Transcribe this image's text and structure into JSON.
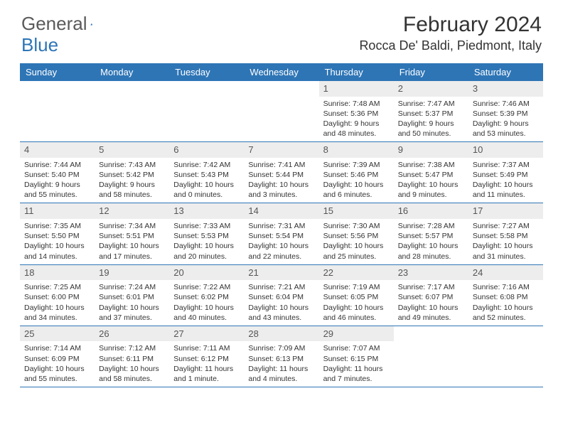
{
  "brand": {
    "part1": "General",
    "part2": "Blue"
  },
  "title": "February 2024",
  "location": "Rocca De' Baldi, Piedmont, Italy",
  "colors": {
    "header_bg": "#2e75b6",
    "header_text": "#ffffff",
    "daynum_bg": "#ededed",
    "rule": "#2e75b6",
    "body_text": "#333333",
    "logo_gray": "#5a5a5a",
    "logo_blue": "#2e75b6",
    "page_bg": "#ffffff"
  },
  "dow": [
    "Sunday",
    "Monday",
    "Tuesday",
    "Wednesday",
    "Thursday",
    "Friday",
    "Saturday"
  ],
  "weeks": [
    [
      {
        "n": "",
        "sr": "",
        "ss": "",
        "dl": ""
      },
      {
        "n": "",
        "sr": "",
        "ss": "",
        "dl": ""
      },
      {
        "n": "",
        "sr": "",
        "ss": "",
        "dl": ""
      },
      {
        "n": "",
        "sr": "",
        "ss": "",
        "dl": ""
      },
      {
        "n": "1",
        "sr": "Sunrise: 7:48 AM",
        "ss": "Sunset: 5:36 PM",
        "dl": "Daylight: 9 hours and 48 minutes."
      },
      {
        "n": "2",
        "sr": "Sunrise: 7:47 AM",
        "ss": "Sunset: 5:37 PM",
        "dl": "Daylight: 9 hours and 50 minutes."
      },
      {
        "n": "3",
        "sr": "Sunrise: 7:46 AM",
        "ss": "Sunset: 5:39 PM",
        "dl": "Daylight: 9 hours and 53 minutes."
      }
    ],
    [
      {
        "n": "4",
        "sr": "Sunrise: 7:44 AM",
        "ss": "Sunset: 5:40 PM",
        "dl": "Daylight: 9 hours and 55 minutes."
      },
      {
        "n": "5",
        "sr": "Sunrise: 7:43 AM",
        "ss": "Sunset: 5:42 PM",
        "dl": "Daylight: 9 hours and 58 minutes."
      },
      {
        "n": "6",
        "sr": "Sunrise: 7:42 AM",
        "ss": "Sunset: 5:43 PM",
        "dl": "Daylight: 10 hours and 0 minutes."
      },
      {
        "n": "7",
        "sr": "Sunrise: 7:41 AM",
        "ss": "Sunset: 5:44 PM",
        "dl": "Daylight: 10 hours and 3 minutes."
      },
      {
        "n": "8",
        "sr": "Sunrise: 7:39 AM",
        "ss": "Sunset: 5:46 PM",
        "dl": "Daylight: 10 hours and 6 minutes."
      },
      {
        "n": "9",
        "sr": "Sunrise: 7:38 AM",
        "ss": "Sunset: 5:47 PM",
        "dl": "Daylight: 10 hours and 9 minutes."
      },
      {
        "n": "10",
        "sr": "Sunrise: 7:37 AM",
        "ss": "Sunset: 5:49 PM",
        "dl": "Daylight: 10 hours and 11 minutes."
      }
    ],
    [
      {
        "n": "11",
        "sr": "Sunrise: 7:35 AM",
        "ss": "Sunset: 5:50 PM",
        "dl": "Daylight: 10 hours and 14 minutes."
      },
      {
        "n": "12",
        "sr": "Sunrise: 7:34 AM",
        "ss": "Sunset: 5:51 PM",
        "dl": "Daylight: 10 hours and 17 minutes."
      },
      {
        "n": "13",
        "sr": "Sunrise: 7:33 AM",
        "ss": "Sunset: 5:53 PM",
        "dl": "Daylight: 10 hours and 20 minutes."
      },
      {
        "n": "14",
        "sr": "Sunrise: 7:31 AM",
        "ss": "Sunset: 5:54 PM",
        "dl": "Daylight: 10 hours and 22 minutes."
      },
      {
        "n": "15",
        "sr": "Sunrise: 7:30 AM",
        "ss": "Sunset: 5:56 PM",
        "dl": "Daylight: 10 hours and 25 minutes."
      },
      {
        "n": "16",
        "sr": "Sunrise: 7:28 AM",
        "ss": "Sunset: 5:57 PM",
        "dl": "Daylight: 10 hours and 28 minutes."
      },
      {
        "n": "17",
        "sr": "Sunrise: 7:27 AM",
        "ss": "Sunset: 5:58 PM",
        "dl": "Daylight: 10 hours and 31 minutes."
      }
    ],
    [
      {
        "n": "18",
        "sr": "Sunrise: 7:25 AM",
        "ss": "Sunset: 6:00 PM",
        "dl": "Daylight: 10 hours and 34 minutes."
      },
      {
        "n": "19",
        "sr": "Sunrise: 7:24 AM",
        "ss": "Sunset: 6:01 PM",
        "dl": "Daylight: 10 hours and 37 minutes."
      },
      {
        "n": "20",
        "sr": "Sunrise: 7:22 AM",
        "ss": "Sunset: 6:02 PM",
        "dl": "Daylight: 10 hours and 40 minutes."
      },
      {
        "n": "21",
        "sr": "Sunrise: 7:21 AM",
        "ss": "Sunset: 6:04 PM",
        "dl": "Daylight: 10 hours and 43 minutes."
      },
      {
        "n": "22",
        "sr": "Sunrise: 7:19 AM",
        "ss": "Sunset: 6:05 PM",
        "dl": "Daylight: 10 hours and 46 minutes."
      },
      {
        "n": "23",
        "sr": "Sunrise: 7:17 AM",
        "ss": "Sunset: 6:07 PM",
        "dl": "Daylight: 10 hours and 49 minutes."
      },
      {
        "n": "24",
        "sr": "Sunrise: 7:16 AM",
        "ss": "Sunset: 6:08 PM",
        "dl": "Daylight: 10 hours and 52 minutes."
      }
    ],
    [
      {
        "n": "25",
        "sr": "Sunrise: 7:14 AM",
        "ss": "Sunset: 6:09 PM",
        "dl": "Daylight: 10 hours and 55 minutes."
      },
      {
        "n": "26",
        "sr": "Sunrise: 7:12 AM",
        "ss": "Sunset: 6:11 PM",
        "dl": "Daylight: 10 hours and 58 minutes."
      },
      {
        "n": "27",
        "sr": "Sunrise: 7:11 AM",
        "ss": "Sunset: 6:12 PM",
        "dl": "Daylight: 11 hours and 1 minute."
      },
      {
        "n": "28",
        "sr": "Sunrise: 7:09 AM",
        "ss": "Sunset: 6:13 PM",
        "dl": "Daylight: 11 hours and 4 minutes."
      },
      {
        "n": "29",
        "sr": "Sunrise: 7:07 AM",
        "ss": "Sunset: 6:15 PM",
        "dl": "Daylight: 11 hours and 7 minutes."
      },
      {
        "n": "",
        "sr": "",
        "ss": "",
        "dl": ""
      },
      {
        "n": "",
        "sr": "",
        "ss": "",
        "dl": ""
      }
    ]
  ]
}
